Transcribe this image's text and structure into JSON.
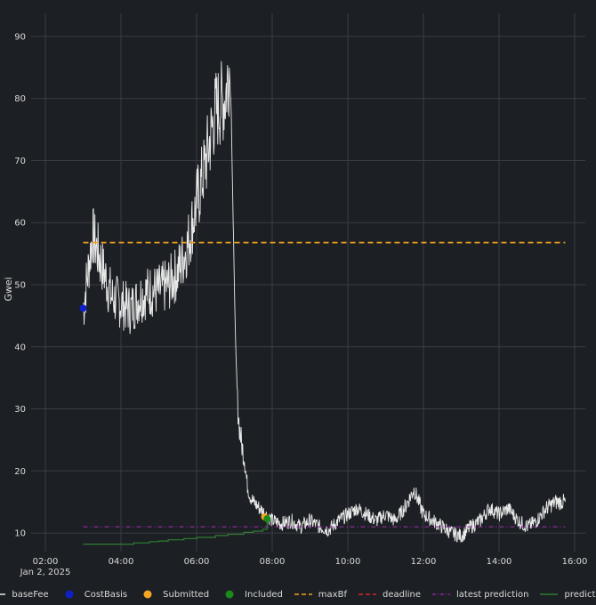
{
  "chart_data": {
    "type": "line",
    "ylabel": "Gwei",
    "xlabel": "",
    "ylim": [
      7,
      93
    ],
    "xlim": [
      "02:00",
      "16:00"
    ],
    "y_ticks": [
      10,
      20,
      30,
      40,
      50,
      60,
      70,
      80,
      90
    ],
    "x_ticks": [
      "02:00",
      "04:00",
      "06:00",
      "08:00",
      "10:00",
      "12:00",
      "14:00",
      "16:00"
    ],
    "x_date_label": "Jan 2, 2025",
    "grid": true,
    "legend_position": "bottom",
    "series": [
      {
        "name": "baseFee",
        "color": "#e8e8e8",
        "style": "solid",
        "x": [
          "03:00",
          "03:15",
          "03:30",
          "03:45",
          "04:00",
          "04:15",
          "04:30",
          "04:45",
          "05:00",
          "05:15",
          "05:30",
          "05:45",
          "06:00",
          "06:15",
          "06:30",
          "06:45",
          "06:52",
          "06:55",
          "06:58",
          "07:02",
          "07:05",
          "07:08",
          "07:12",
          "07:16",
          "07:20",
          "07:25",
          "07:30",
          "07:40",
          "07:50",
          "08:00",
          "08:15",
          "08:30",
          "08:45",
          "09:00",
          "09:15",
          "09:30",
          "09:45",
          "10:00",
          "10:15",
          "10:30",
          "10:45",
          "11:00",
          "11:15",
          "11:30",
          "11:45",
          "12:00",
          "12:15",
          "12:30",
          "12:45",
          "13:00",
          "13:15",
          "13:30",
          "13:45",
          "14:00",
          "14:15",
          "14:30",
          "14:45",
          "15:00",
          "15:15",
          "15:30",
          "15:45"
        ],
        "y": [
          46,
          58,
          53,
          48,
          47,
          46,
          48,
          49,
          49,
          50,
          52,
          56,
          63,
          70,
          78,
          80,
          85,
          78,
          60,
          40,
          31,
          27,
          24,
          22,
          18,
          16,
          15,
          14,
          13,
          12,
          11.5,
          12,
          11,
          12,
          11,
          10.5,
          12,
          13,
          14,
          13,
          12,
          13,
          12,
          14,
          17,
          13,
          12,
          11,
          10,
          9.5,
          11,
          12,
          14,
          13,
          14,
          12,
          11,
          12,
          14,
          15,
          15
        ]
      },
      {
        "name": "CostBasis",
        "color": "#1020c8",
        "style": "point",
        "x": [
          "03:00"
        ],
        "y": [
          46.2
        ]
      },
      {
        "name": "Submitted",
        "color": "#f5a623",
        "style": "point",
        "x": [
          "07:48"
        ],
        "y": [
          12.6
        ]
      },
      {
        "name": "Included",
        "color": "#1a8a1a",
        "style": "point",
        "x": [
          "07:52"
        ],
        "y": [
          12.3
        ]
      },
      {
        "name": "maxBf",
        "color": "#f0a020",
        "style": "dashed",
        "x": [
          "03:00",
          "15:45"
        ],
        "y": [
          56.8,
          56.8
        ]
      },
      {
        "name": "deadline",
        "color": "#d62728",
        "style": "dashed",
        "x": [],
        "y": []
      },
      {
        "name": "latest prediction",
        "color": "#8a2a9a",
        "style": "dashdot",
        "x": [
          "03:00",
          "15:45"
        ],
        "y": [
          11.0,
          11.0
        ]
      },
      {
        "name": "prediction",
        "color": "#2e7d32",
        "style": "step",
        "x": [
          "03:00",
          "03:40",
          "04:20",
          "04:45",
          "05:00",
          "05:15",
          "05:40",
          "06:00",
          "06:30",
          "06:50",
          "07:15",
          "07:30",
          "07:45",
          "07:52"
        ],
        "y": [
          8.2,
          8.2,
          8.4,
          8.6,
          8.7,
          8.9,
          9.1,
          9.3,
          9.6,
          9.8,
          10.1,
          10.3,
          10.6,
          12.3
        ]
      }
    ]
  }
}
